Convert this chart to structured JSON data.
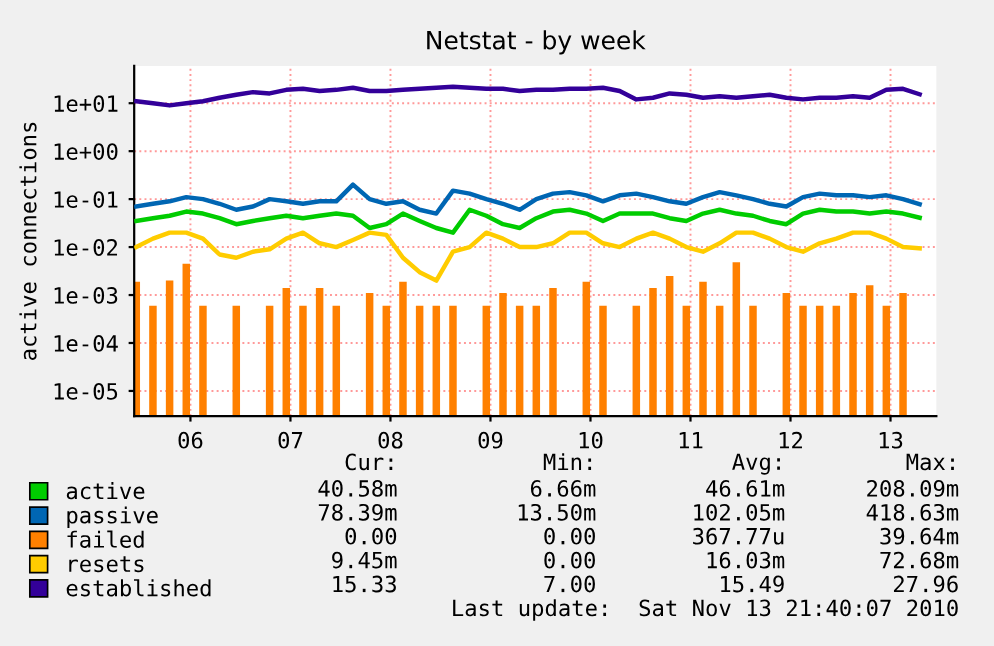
{
  "chart_data": {
    "type": "line",
    "title": "Netstat - by week",
    "ylabel": "active connections",
    "log": "y",
    "grid": true,
    "legend": "bottom left",
    "marker": "none",
    "line_style": "solid",
    "x": [
      "2010-11-05T23:00",
      "2010-11-06T03:00",
      "2010-11-06T07:00",
      "2010-11-06T11:00",
      "2010-11-06T15:00",
      "2010-11-06T19:00",
      "2010-11-06T23:00",
      "2010-11-07T03:00",
      "2010-11-07T07:00",
      "2010-11-07T11:00",
      "2010-11-07T15:00",
      "2010-11-07T19:00",
      "2010-11-07T23:00",
      "2010-11-08T03:00",
      "2010-11-08T07:00",
      "2010-11-08T11:00",
      "2010-11-08T15:00",
      "2010-11-08T19:00",
      "2010-11-08T23:00",
      "2010-11-09T03:00",
      "2010-11-09T07:00",
      "2010-11-09T11:00",
      "2010-11-09T15:00",
      "2010-11-09T19:00",
      "2010-11-09T23:00",
      "2010-11-10T03:00",
      "2010-11-10T07:00",
      "2010-11-10T11:00",
      "2010-11-10T15:00",
      "2010-11-10T19:00",
      "2010-11-10T23:00",
      "2010-11-11T03:00",
      "2010-11-11T07:00",
      "2010-11-11T11:00",
      "2010-11-11T15:00",
      "2010-11-11T19:00",
      "2010-11-11T23:00",
      "2010-11-12T03:00",
      "2010-11-12T07:00",
      "2010-11-12T11:00",
      "2010-11-12T15:00",
      "2010-11-12T19:00",
      "2010-11-12T23:00",
      "2010-11-13T03:00",
      "2010-11-13T07:00",
      "2010-11-13T11:00",
      "2010-11-13T15:00",
      "2010-11-13T19:00"
    ],
    "series": [
      {
        "name": "active",
        "color": "#00cc00",
        "values": [
          0.035,
          0.04,
          0.045,
          0.055,
          0.05,
          0.04,
          0.03,
          0.035,
          0.04,
          0.045,
          0.04,
          0.045,
          0.05,
          0.045,
          0.025,
          0.03,
          0.05,
          0.035,
          0.025,
          0.02,
          0.06,
          0.045,
          0.03,
          0.025,
          0.04,
          0.055,
          0.06,
          0.05,
          0.035,
          0.05,
          0.05,
          0.05,
          0.04,
          0.035,
          0.05,
          0.06,
          0.05,
          0.045,
          0.035,
          0.03,
          0.05,
          0.06,
          0.055,
          0.055,
          0.05,
          0.055,
          0.05,
          0.041
        ]
      },
      {
        "name": "passive",
        "color": "#0066b3",
        "values": [
          0.07,
          0.08,
          0.09,
          0.11,
          0.1,
          0.08,
          0.06,
          0.07,
          0.1,
          0.09,
          0.08,
          0.09,
          0.09,
          0.2,
          0.1,
          0.08,
          0.09,
          0.06,
          0.05,
          0.15,
          0.13,
          0.1,
          0.08,
          0.06,
          0.1,
          0.13,
          0.14,
          0.12,
          0.09,
          0.12,
          0.13,
          0.11,
          0.09,
          0.08,
          0.11,
          0.14,
          0.12,
          0.1,
          0.08,
          0.07,
          0.11,
          0.13,
          0.12,
          0.12,
          0.11,
          0.12,
          0.1,
          0.078
        ]
      },
      {
        "name": "failed",
        "type": "bar",
        "color": "#ff8000",
        "values": [
          0.0019,
          0.0006,
          0.002,
          0.0045,
          0.0006,
          null,
          0.0006,
          null,
          0.0006,
          0.0014,
          0.0006,
          0.0014,
          0.0006,
          null,
          0.0011,
          0.0006,
          0.0019,
          0.0006,
          0.0006,
          0.0006,
          null,
          0.0006,
          0.0011,
          0.0006,
          0.0006,
          0.0014,
          null,
          0.0019,
          0.0006,
          null,
          0.0006,
          0.0014,
          0.0025,
          0.0006,
          0.0019,
          0.0006,
          0.0048,
          0.0006,
          null,
          0.0011,
          0.0006,
          0.0006,
          0.0006,
          0.0011,
          0.0016,
          0.0006,
          0.0011,
          null
        ]
      },
      {
        "name": "resets",
        "color": "#ffcc00",
        "values": [
          0.01,
          0.015,
          0.02,
          0.02,
          0.015,
          0.007,
          0.006,
          0.008,
          0.009,
          0.015,
          0.02,
          0.012,
          0.01,
          0.014,
          0.02,
          0.018,
          0.006,
          0.003,
          0.002,
          0.008,
          0.01,
          0.02,
          0.015,
          0.01,
          0.01,
          0.012,
          0.02,
          0.02,
          0.012,
          0.01,
          0.015,
          0.02,
          0.015,
          0.01,
          0.008,
          0.012,
          0.02,
          0.02,
          0.015,
          0.01,
          0.008,
          0.012,
          0.015,
          0.02,
          0.02,
          0.015,
          0.01,
          0.00945
        ]
      },
      {
        "name": "established",
        "color": "#330099",
        "values": [
          11,
          10,
          9,
          10,
          11,
          13,
          15,
          17,
          16,
          19,
          20,
          18,
          19,
          21,
          18,
          18,
          19,
          20,
          21,
          22,
          21,
          20,
          20,
          18,
          19,
          19,
          20,
          20,
          21,
          18,
          12,
          13,
          16,
          15,
          13,
          14,
          13,
          14,
          15,
          13,
          12,
          13,
          13,
          14,
          13,
          19,
          20,
          15.33
        ]
      }
    ],
    "xlim": [
      "2010-11-05T22:30",
      "2010-11-13T23:00"
    ],
    "xticks": [
      {
        "value": "2010-11-06T12:00",
        "label": "06"
      },
      {
        "value": "2010-11-07T12:00",
        "label": "07"
      },
      {
        "value": "2010-11-08T12:00",
        "label": "08"
      },
      {
        "value": "2010-11-09T12:00",
        "label": "09"
      },
      {
        "value": "2010-11-10T12:00",
        "label": "10"
      },
      {
        "value": "2010-11-11T12:00",
        "label": "11"
      },
      {
        "value": "2010-11-12T12:00",
        "label": "12"
      },
      {
        "value": "2010-11-13T12:00",
        "label": "13"
      }
    ],
    "ylim": [
      3e-06,
      60
    ],
    "yticks": [
      {
        "value": 1e-05,
        "label": "1e-05"
      },
      {
        "value": 0.0001,
        "label": "1e-04"
      },
      {
        "value": 0.001,
        "label": "1e-03"
      },
      {
        "value": 0.01,
        "label": "1e-02"
      },
      {
        "value": 0.1,
        "label": "1e-01"
      },
      {
        "value": 1,
        "label": "1e+00"
      },
      {
        "value": 10,
        "label": "1e+01"
      }
    ],
    "annotations": [
      "Cur:",
      "Min:",
      "Avg:",
      "Max:",
      "40.58m",
      "6.66m",
      "46.61m",
      "208.09m",
      "78.39m",
      "13.50m",
      "102.05m",
      "418.63m",
      "0.00",
      "0.00",
      "367.77u",
      "39.64m",
      "9.45m",
      "0.00",
      "16.03m",
      "72.68m",
      "15.33",
      "7.00",
      "15.49",
      "27.96",
      "Last update:  Sat Nov 13 21:40:07 2010"
    ]
  }
}
